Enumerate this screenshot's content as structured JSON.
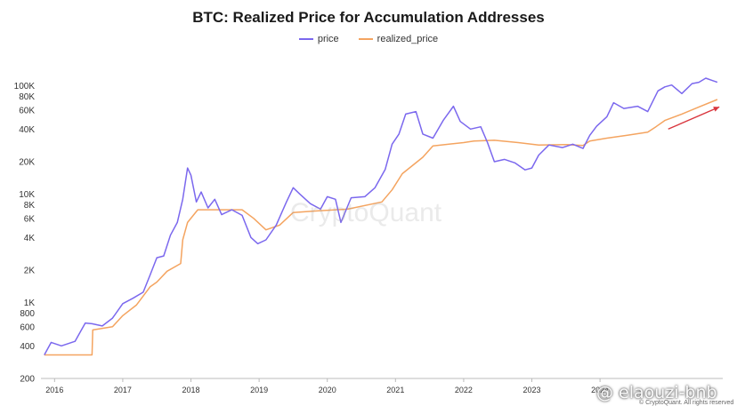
{
  "chart_data": {
    "type": "line",
    "title": "BTC: Realized Price for Accumulation Addresses",
    "y_scale": "log",
    "ylim": [
      200,
      200000
    ],
    "xlim": [
      2015.8,
      2025.8
    ],
    "y_ticks": [
      {
        "value": 200,
        "label": "200"
      },
      {
        "value": 400,
        "label": "400"
      },
      {
        "value": 600,
        "label": "600"
      },
      {
        "value": 800,
        "label": "800"
      },
      {
        "value": 1000,
        "label": "1K"
      },
      {
        "value": 2000,
        "label": "2K"
      },
      {
        "value": 4000,
        "label": "4K"
      },
      {
        "value": 6000,
        "label": "6K"
      },
      {
        "value": 8000,
        "label": "8K"
      },
      {
        "value": 10000,
        "label": "10K"
      },
      {
        "value": 20000,
        "label": "20K"
      },
      {
        "value": 40000,
        "label": "40K"
      },
      {
        "value": 60000,
        "label": "60K"
      },
      {
        "value": 80000,
        "label": "80K"
      },
      {
        "value": 100000,
        "label": "100K"
      }
    ],
    "x_ticks": [
      {
        "value": 2016,
        "label": "2016"
      },
      {
        "value": 2017,
        "label": "2017"
      },
      {
        "value": 2018,
        "label": "2018"
      },
      {
        "value": 2019,
        "label": "2019"
      },
      {
        "value": 2020,
        "label": "2020"
      },
      {
        "value": 2021,
        "label": "2021"
      },
      {
        "value": 2022,
        "label": "2022"
      },
      {
        "value": 2023,
        "label": "2023"
      },
      {
        "value": 2024,
        "label": "2024"
      }
    ],
    "series": [
      {
        "name": "price",
        "color": "#7b68ee",
        "points": [
          [
            2015.85,
            330
          ],
          [
            2015.95,
            430
          ],
          [
            2016.1,
            400
          ],
          [
            2016.3,
            440
          ],
          [
            2016.45,
            650
          ],
          [
            2016.55,
            640
          ],
          [
            2016.7,
            610
          ],
          [
            2016.85,
            720
          ],
          [
            2017.0,
            980
          ],
          [
            2017.15,
            1100
          ],
          [
            2017.3,
            1250
          ],
          [
            2017.4,
            1800
          ],
          [
            2017.5,
            2600
          ],
          [
            2017.6,
            2700
          ],
          [
            2017.7,
            4200
          ],
          [
            2017.8,
            5500
          ],
          [
            2017.88,
            9000
          ],
          [
            2017.95,
            17500
          ],
          [
            2018.0,
            15000
          ],
          [
            2018.08,
            8500
          ],
          [
            2018.15,
            10500
          ],
          [
            2018.25,
            7500
          ],
          [
            2018.35,
            9000
          ],
          [
            2018.45,
            6500
          ],
          [
            2018.6,
            7200
          ],
          [
            2018.75,
            6400
          ],
          [
            2018.88,
            4000
          ],
          [
            2018.98,
            3500
          ],
          [
            2019.1,
            3800
          ],
          [
            2019.25,
            5200
          ],
          [
            2019.4,
            8500
          ],
          [
            2019.5,
            11500
          ],
          [
            2019.6,
            10000
          ],
          [
            2019.75,
            8200
          ],
          [
            2019.9,
            7300
          ],
          [
            2020.0,
            9500
          ],
          [
            2020.12,
            9000
          ],
          [
            2020.2,
            5500
          ],
          [
            2020.35,
            9300
          ],
          [
            2020.55,
            9500
          ],
          [
            2020.7,
            11500
          ],
          [
            2020.85,
            17000
          ],
          [
            2020.95,
            29000
          ],
          [
            2021.05,
            36000
          ],
          [
            2021.15,
            55000
          ],
          [
            2021.3,
            58000
          ],
          [
            2021.4,
            36000
          ],
          [
            2021.55,
            33000
          ],
          [
            2021.7,
            48000
          ],
          [
            2021.85,
            65000
          ],
          [
            2021.95,
            47000
          ],
          [
            2022.1,
            40000
          ],
          [
            2022.25,
            42000
          ],
          [
            2022.35,
            30000
          ],
          [
            2022.45,
            20000
          ],
          [
            2022.6,
            21000
          ],
          [
            2022.75,
            19500
          ],
          [
            2022.9,
            16800
          ],
          [
            2023.0,
            17500
          ],
          [
            2023.1,
            23000
          ],
          [
            2023.25,
            28500
          ],
          [
            2023.45,
            27000
          ],
          [
            2023.6,
            29000
          ],
          [
            2023.75,
            26500
          ],
          [
            2023.85,
            35000
          ],
          [
            2023.95,
            42500
          ],
          [
            2024.1,
            52000
          ],
          [
            2024.2,
            70000
          ],
          [
            2024.35,
            62000
          ],
          [
            2024.55,
            65000
          ],
          [
            2024.7,
            58000
          ],
          [
            2024.85,
            90000
          ],
          [
            2024.95,
            98000
          ],
          [
            2025.05,
            102000
          ],
          [
            2025.2,
            85000
          ],
          [
            2025.35,
            105000
          ],
          [
            2025.45,
            108000
          ],
          [
            2025.55,
            118000
          ],
          [
            2025.65,
            112000
          ],
          [
            2025.72,
            108000
          ]
        ]
      },
      {
        "name": "realized_price",
        "color": "#f4a460",
        "points": [
          [
            2015.85,
            330
          ],
          [
            2016.55,
            330
          ],
          [
            2016.56,
            560
          ],
          [
            2016.85,
            600
          ],
          [
            2017.0,
            760
          ],
          [
            2017.2,
            950
          ],
          [
            2017.4,
            1400
          ],
          [
            2017.5,
            1550
          ],
          [
            2017.65,
            1950
          ],
          [
            2017.85,
            2300
          ],
          [
            2017.88,
            3800
          ],
          [
            2017.95,
            5500
          ],
          [
            2018.1,
            7200
          ],
          [
            2018.75,
            7200
          ],
          [
            2018.92,
            6000
          ],
          [
            2019.1,
            4700
          ],
          [
            2019.3,
            5200
          ],
          [
            2019.5,
            6800
          ],
          [
            2019.8,
            7000
          ],
          [
            2020.3,
            7300
          ],
          [
            2020.8,
            8500
          ],
          [
            2020.95,
            11000
          ],
          [
            2021.1,
            15500
          ],
          [
            2021.4,
            22000
          ],
          [
            2021.55,
            28000
          ],
          [
            2022.0,
            30000
          ],
          [
            2022.15,
            31000
          ],
          [
            2022.45,
            31500
          ],
          [
            2022.8,
            30000
          ],
          [
            2023.1,
            28500
          ],
          [
            2023.5,
            28800
          ],
          [
            2023.75,
            28200
          ],
          [
            2023.85,
            31000
          ],
          [
            2024.1,
            33000
          ],
          [
            2024.4,
            35000
          ],
          [
            2024.7,
            37500
          ],
          [
            2024.82,
            42000
          ],
          [
            2024.95,
            48000
          ],
          [
            2025.2,
            55000
          ],
          [
            2025.45,
            64000
          ],
          [
            2025.72,
            75000
          ]
        ]
      }
    ],
    "annotations": [
      {
        "type": "arrow",
        "color": "#d9363e",
        "from": [
          2025.0,
          40000
        ],
        "to": [
          2025.75,
          64000
        ]
      }
    ],
    "watermark": "CryptoQuant",
    "legend_position": "top-center"
  },
  "footer": {
    "handle": "@ elaouzi-bnb",
    "copyright": "© CryptoQuant. All rights reserved"
  }
}
